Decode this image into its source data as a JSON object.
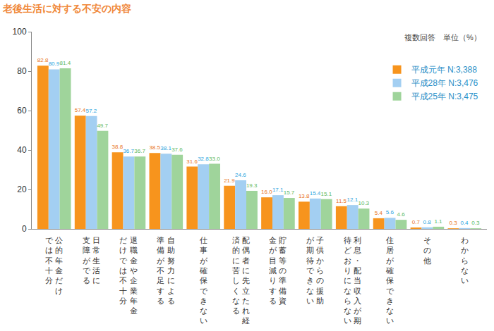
{
  "chart_data": {
    "type": "bar",
    "title": "老後生活に対する不安の内容",
    "annotations": [
      "複数回答　単位（%）"
    ],
    "categories": [
      "公的年金だけでは不十分",
      "日常生活に支障がでる",
      "退職金や企業年金だけでは不十分",
      "自助努力による準備が不足する",
      "仕事が確保できない",
      "配偶者に先立たれ経済的に苦しくなる",
      "貯蓄等の準備資金が目減りする",
      "子供からの援助が期待できない",
      "利息・配当収入が期待どおりにならない",
      "住居が確保できない",
      "その他",
      "わからない"
    ],
    "series": [
      {
        "name": "平成元年 N:3,388",
        "color": "#f7941d",
        "values": [
          82.8,
          57.4,
          38.8,
          38.5,
          31.6,
          21.9,
          16.0,
          13.8,
          11.5,
          5.4,
          0.7,
          0.3
        ],
        "value_labels": [
          "82.8",
          "57.4",
          "38.8",
          "38.5",
          "31.6",
          "21.9",
          "16.0",
          "13.8",
          "11.5",
          "5.4",
          "0.7",
          "0.3"
        ]
      },
      {
        "name": "平成28年 N:3,476",
        "color": "#a3cff2",
        "values": [
          80.9,
          57.2,
          36.7,
          38.1,
          32.8,
          24.6,
          17.1,
          15.4,
          12.1,
          5.6,
          0.8,
          0.4
        ],
        "value_labels": [
          "80.9",
          "57.2",
          "36.7",
          "38.1",
          "32.8",
          "24.6",
          "17.1",
          "15.4",
          "12.1",
          "5.6",
          "0.8",
          "0.4"
        ]
      },
      {
        "name": "平成25年 N:3,475",
        "color": "#9fd49b",
        "values": [
          81.4,
          49.7,
          36.7,
          37.6,
          33.0,
          19.3,
          15.7,
          15.1,
          10.3,
          4.6,
          1.1,
          0.3
        ],
        "value_labels": [
          "81.4",
          "49.7",
          "36.7",
          "37.6",
          "33.0",
          "19.3",
          "15.7",
          "15.1",
          "10.3",
          "4.6",
          "1.1",
          "0.3"
        ]
      }
    ],
    "ylim": [
      0,
      100
    ],
    "yticks": [
      0,
      20,
      40,
      60,
      80,
      100
    ],
    "grid": false,
    "legend": "top-right",
    "data_labels": true
  }
}
